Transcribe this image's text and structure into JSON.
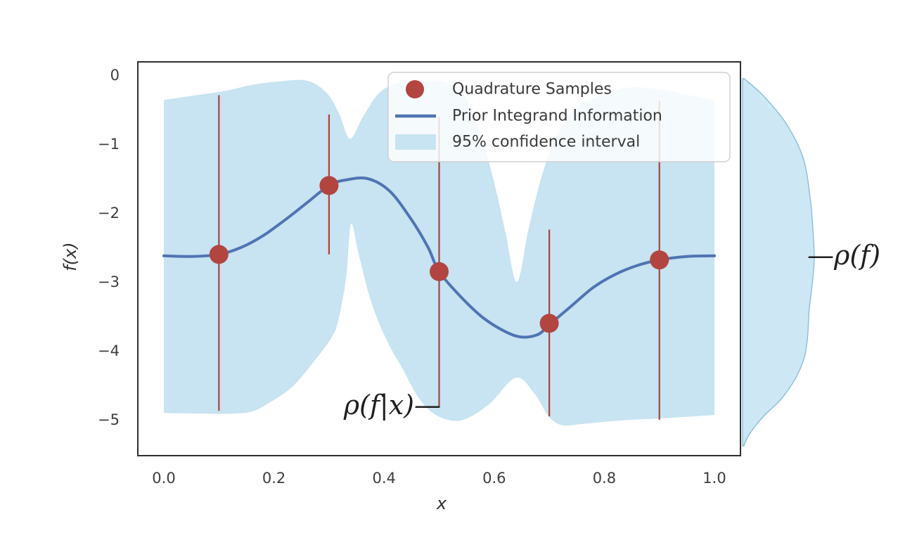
{
  "figure": {
    "background": "#ffffff",
    "colors": {
      "band_fill": "#c8e3f1",
      "band_edge": "#8ec2dd",
      "mean_curve": "#4f74b3",
      "sample_marker": "#b2453f",
      "conditional_line": "#a9433c",
      "frame": "#2e2e2e",
      "tick_text": "#3d3d3d",
      "legend_border": "#d0d0d0",
      "annotation_text": "#1f1f1f"
    },
    "axes": {
      "xlabel": "x",
      "ylabel": "f(x)",
      "x_tick_labels": [
        "0.0",
        "0.2",
        "0.4",
        "0.6",
        "0.8",
        "1.0"
      ],
      "x_tick_values": [
        0.0,
        0.2,
        0.4,
        0.6,
        0.8,
        1.0
      ],
      "y_tick_labels": [
        "0",
        "−1",
        "−2",
        "−3",
        "−4",
        "−5"
      ],
      "y_tick_values": [
        0,
        -1,
        -2,
        -3,
        -4,
        -5
      ],
      "xlim": [
        -0.047,
        1.047
      ],
      "ylim": [
        -5.52,
        0.19
      ],
      "grid": false
    },
    "legend": {
      "position": "upper right",
      "items": [
        {
          "symbol": "marker",
          "label": "Quadrature Samples",
          "color": "#b2453f"
        },
        {
          "symbol": "line",
          "label": "Prior Integrand Information",
          "color": "#4f74b3"
        },
        {
          "symbol": "patch",
          "label": "95% confidence interval",
          "color": "#c8e3f1"
        }
      ]
    },
    "annotations": [
      {
        "id": "conditional-density-label",
        "text": "ρ(f|x)—",
        "points_to": "sample distribution line at x=0.5"
      },
      {
        "id": "marginal-density-label",
        "text": "—ρ(f)",
        "points_to": "marginal density on right edge"
      }
    ]
  },
  "chart_data": {
    "type": "line",
    "title": "",
    "xlabel": "x",
    "ylabel": "f(x)",
    "xlim": [
      -0.047,
      1.047
    ],
    "ylim": [
      -5.52,
      0.19
    ],
    "legend_position": "upper right",
    "grid": false,
    "series": [
      {
        "name": "Prior Integrand Information",
        "type": "line",
        "points": [
          [
            0.0,
            -2.62
          ],
          [
            0.05,
            -2.63
          ],
          [
            0.1,
            -2.6
          ],
          [
            0.14,
            -2.5
          ],
          [
            0.18,
            -2.33
          ],
          [
            0.22,
            -2.1
          ],
          [
            0.26,
            -1.85
          ],
          [
            0.3,
            -1.6
          ],
          [
            0.33,
            -1.52
          ],
          [
            0.37,
            -1.5
          ],
          [
            0.41,
            -1.68
          ],
          [
            0.45,
            -2.1
          ],
          [
            0.48,
            -2.5
          ],
          [
            0.5,
            -2.85
          ],
          [
            0.54,
            -3.22
          ],
          [
            0.58,
            -3.52
          ],
          [
            0.62,
            -3.72
          ],
          [
            0.65,
            -3.8
          ],
          [
            0.68,
            -3.76
          ],
          [
            0.7,
            -3.62
          ],
          [
            0.74,
            -3.35
          ],
          [
            0.78,
            -3.08
          ],
          [
            0.82,
            -2.89
          ],
          [
            0.86,
            -2.76
          ],
          [
            0.9,
            -2.68
          ],
          [
            0.95,
            -2.63
          ],
          [
            1.0,
            -2.62
          ]
        ]
      },
      {
        "name": "Quadrature Samples",
        "type": "scatter",
        "points": [
          [
            0.1,
            -2.6
          ],
          [
            0.3,
            -1.6
          ],
          [
            0.5,
            -2.85
          ],
          [
            0.7,
            -3.6
          ],
          [
            0.9,
            -2.68
          ]
        ]
      }
    ],
    "confidence_band": {
      "name": "95% confidence interval",
      "upper": [
        [
          0.0,
          -0.36
        ],
        [
          0.05,
          -0.3
        ],
        [
          0.11,
          -0.23
        ],
        [
          0.16,
          -0.14
        ],
        [
          0.21,
          -0.09
        ],
        [
          0.26,
          -0.08
        ],
        [
          0.295,
          -0.25
        ],
        [
          0.318,
          -0.55
        ],
        [
          0.338,
          -0.92
        ],
        [
          0.362,
          -0.6
        ],
        [
          0.392,
          -0.25
        ],
        [
          0.43,
          -0.1
        ],
        [
          0.47,
          -0.08
        ],
        [
          0.51,
          -0.1
        ],
        [
          0.545,
          -0.28
        ],
        [
          0.575,
          -0.85
        ],
        [
          0.6,
          -1.56
        ],
        [
          0.621,
          -2.3
        ],
        [
          0.641,
          -3.0
        ],
        [
          0.662,
          -2.25
        ],
        [
          0.685,
          -1.5
        ],
        [
          0.712,
          -0.9
        ],
        [
          0.745,
          -0.5
        ],
        [
          0.785,
          -0.32
        ],
        [
          0.84,
          -0.18
        ],
        [
          0.905,
          -0.21
        ],
        [
          0.955,
          -0.29
        ],
        [
          1.0,
          -0.36
        ]
      ],
      "lower": [
        [
          0.0,
          -4.9
        ],
        [
          0.06,
          -4.91
        ],
        [
          0.124,
          -4.91
        ],
        [
          0.16,
          -4.88
        ],
        [
          0.188,
          -4.77
        ],
        [
          0.232,
          -4.53
        ],
        [
          0.275,
          -4.13
        ],
        [
          0.305,
          -3.8
        ],
        [
          0.317,
          -3.55
        ],
        [
          0.331,
          -2.94
        ],
        [
          0.34,
          -2.16
        ],
        [
          0.354,
          -2.6
        ],
        [
          0.377,
          -3.3
        ],
        [
          0.405,
          -3.85
        ],
        [
          0.433,
          -4.25
        ],
        [
          0.462,
          -4.67
        ],
        [
          0.494,
          -4.93
        ],
        [
          0.539,
          -5.01
        ],
        [
          0.59,
          -4.78
        ],
        [
          0.639,
          -4.39
        ],
        [
          0.673,
          -4.62
        ],
        [
          0.699,
          -4.95
        ],
        [
          0.724,
          -5.08
        ],
        [
          0.76,
          -5.06
        ],
        [
          0.801,
          -5.03
        ],
        [
          0.85,
          -5.0
        ],
        [
          0.903,
          -4.98
        ],
        [
          1.0,
          -4.93
        ]
      ]
    },
    "conditional_lines": [
      {
        "x": 0.1,
        "f_top": -0.29,
        "f_bottom": -4.87
      },
      {
        "x": 0.3,
        "f_top": -0.57,
        "f_bottom": -2.6
      },
      {
        "x": 0.5,
        "f_top": -0.61,
        "f_bottom": -4.81
      },
      {
        "x": 0.7,
        "f_top": -2.24,
        "f_bottom": -4.95
      },
      {
        "x": 0.9,
        "f_top": -0.37,
        "f_bottom": -5.0
      }
    ],
    "marginal_density": {
      "label": "ρ(f)",
      "f": [
        -0.05,
        -0.3,
        -0.7,
        -1.2,
        -1.8,
        -2.4,
        -2.7,
        -3.0,
        -3.4,
        -3.8,
        -4.1,
        -4.4,
        -4.7,
        -4.95,
        -5.2,
        -5.38
      ],
      "width": [
        0.003,
        0.038,
        0.079,
        0.11,
        0.123,
        0.129,
        0.13,
        0.127,
        0.121,
        0.118,
        0.112,
        0.096,
        0.07,
        0.038,
        0.013,
        0.002
      ]
    }
  }
}
